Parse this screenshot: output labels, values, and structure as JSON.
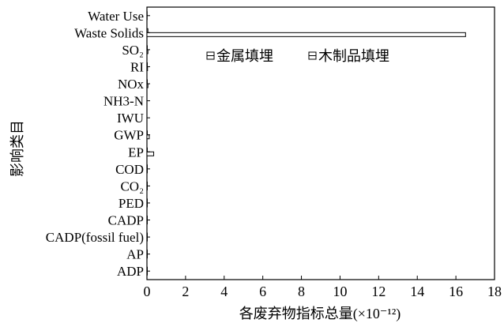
{
  "chart_data": {
    "type": "bar",
    "orientation": "horizontal",
    "title": "",
    "xlabel": "各废弃物指标总量(×10⁻¹²)",
    "ylabel": "影响类目",
    "xlim": [
      0,
      18
    ],
    "xticks": [
      "0",
      "2",
      "4",
      "6",
      "8",
      "10",
      "12",
      "14",
      "16",
      "18"
    ],
    "categories": [
      "ADP",
      "AP",
      "CADP(fossil fuel)",
      "CADP",
      "PED",
      "CO₂",
      "COD",
      "EP",
      "GWP",
      "IWU",
      "NH3-N",
      "NOx",
      "RI",
      "SO₂",
      "Waste Solids",
      "Water Use"
    ],
    "series": [
      {
        "name": "金属填埋",
        "values": [
          0.02,
          0.02,
          0.02,
          0.02,
          0.02,
          0.02,
          0.02,
          0.02,
          0.02,
          0.0,
          0.0,
          0.02,
          0.02,
          0.02,
          0.05,
          0.01
        ]
      },
      {
        "name": "木制品填埋",
        "values": [
          0.02,
          0.02,
          0.02,
          0.02,
          0.02,
          0.02,
          0.02,
          0.35,
          0.12,
          0.0,
          0.0,
          0.05,
          0.03,
          0.05,
          16.5,
          0.01
        ]
      }
    ],
    "grid": false,
    "legend_position": "top-center"
  }
}
